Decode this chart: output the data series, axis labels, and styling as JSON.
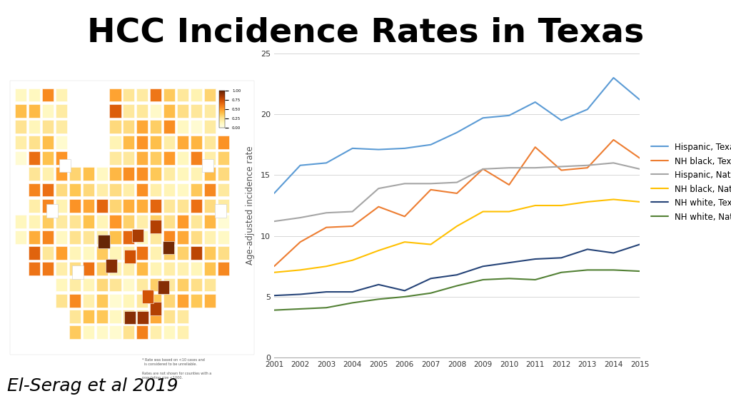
{
  "title": "HCC Incidence Rates in Texas",
  "title_fontsize": 34,
  "title_fontweight": "bold",
  "ylabel": "Age-adjusted incidence rate",
  "years": [
    2001,
    2002,
    2003,
    2004,
    2005,
    2006,
    2007,
    2008,
    2009,
    2010,
    2011,
    2012,
    2013,
    2014,
    2015
  ],
  "series_data": {
    "Hispanic, Texas": [
      13.5,
      15.8,
      16.0,
      17.2,
      17.1,
      17.2,
      17.5,
      18.5,
      19.7,
      19.9,
      21.0,
      19.5,
      20.4,
      23.0,
      21.2
    ],
    "NH black, Texas": [
      7.5,
      9.5,
      10.7,
      10.8,
      12.4,
      11.6,
      13.8,
      13.5,
      15.5,
      14.2,
      17.3,
      15.4,
      15.6,
      17.9,
      16.4
    ],
    "Hispanic, Nationwide": [
      11.2,
      11.5,
      11.9,
      12.0,
      13.9,
      14.3,
      14.3,
      14.4,
      15.5,
      15.6,
      15.6,
      15.7,
      15.8,
      16.0,
      15.5
    ],
    "NH black, Nationwide": [
      7.0,
      7.2,
      7.5,
      8.0,
      8.8,
      9.5,
      9.3,
      10.8,
      12.0,
      12.0,
      12.5,
      12.5,
      12.8,
      13.0,
      12.8
    ],
    "NH white, Texas": [
      5.1,
      5.2,
      5.4,
      5.4,
      6.0,
      5.5,
      6.5,
      6.8,
      7.5,
      7.8,
      8.1,
      8.2,
      8.9,
      8.6,
      9.3
    ],
    "NH white, Nationwide": [
      3.9,
      4.0,
      4.1,
      4.5,
      4.8,
      5.0,
      5.3,
      5.9,
      6.4,
      6.5,
      6.4,
      7.0,
      7.2,
      7.2,
      7.1
    ]
  },
  "series_order": [
    "Hispanic, Texas",
    "NH black, Texas",
    "Hispanic, Nationwide",
    "NH black, Nationwide",
    "NH white, Texas",
    "NH white, Nationwide"
  ],
  "colors": {
    "Hispanic, Texas": "#5B9BD5",
    "NH black, Texas": "#ED7D31",
    "Hispanic, Nationwide": "#A5A5A5",
    "NH black, Nationwide": "#FFC000",
    "NH white, Texas": "#264478",
    "NH white, Nationwide": "#538135"
  },
  "ylim": [
    0,
    25
  ],
  "yticks": [
    0,
    5,
    10,
    15,
    20,
    25
  ],
  "citation": "El-Serag et al 2019",
  "citation_fontsize": 18,
  "background_color": "#FFFFFF",
  "grid_color": "#CCCCCC",
  "grid_alpha": 0.8
}
